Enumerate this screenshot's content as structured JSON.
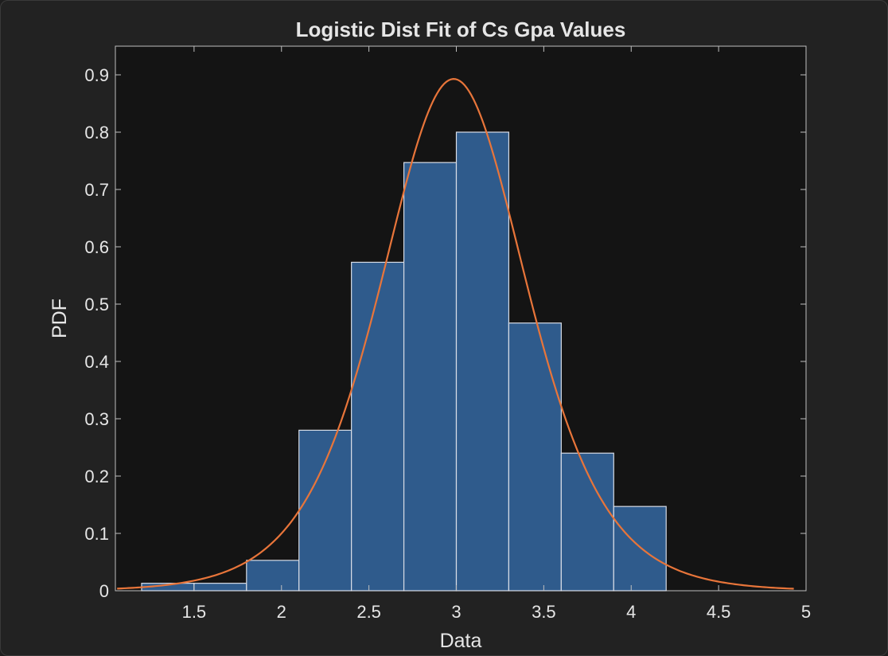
{
  "chart_data": {
    "type": "bar",
    "title": "Logistic Dist Fit of Cs Gpa Values",
    "xlabel": "Data",
    "ylabel": "PDF",
    "xlim": [
      1.05,
      5.0
    ],
    "ylim": [
      0,
      0.95
    ],
    "xticks": [
      1.5,
      2,
      2.5,
      3,
      3.5,
      4,
      4.5,
      5
    ],
    "xtick_labels": [
      "1.5",
      "2",
      "2.5",
      "3",
      "3.5",
      "4",
      "4.5",
      "5"
    ],
    "yticks": [
      0,
      0.1,
      0.2,
      0.3,
      0.4,
      0.5,
      0.6,
      0.7,
      0.8,
      0.9
    ],
    "ytick_labels": [
      "0",
      "0.1",
      "0.2",
      "0.3",
      "0.4",
      "0.5",
      "0.6",
      "0.7",
      "0.8",
      "0.9"
    ],
    "grid": false,
    "histogram": {
      "bin_edges": [
        1.2,
        1.5,
        1.8,
        2.1,
        2.4,
        2.7,
        3.0,
        3.3,
        3.6,
        3.9,
        4.2
      ],
      "values": [
        0.013,
        0.013,
        0.053,
        0.28,
        0.573,
        0.747,
        0.8,
        0.467,
        0.24,
        0.147
      ],
      "color": "#2f5b8c",
      "edge_color": "#d8dde6"
    },
    "fit_curve": {
      "distribution": "logistic",
      "mu": 2.985,
      "s": 0.28,
      "x_range": [
        1.06,
        4.93
      ],
      "color": "#e8753a"
    }
  },
  "colors": {
    "figure_background": "#222222",
    "axes_background": "#141414",
    "axis_color": "#bfbfbf",
    "text_color": "#e6e6e6"
  }
}
